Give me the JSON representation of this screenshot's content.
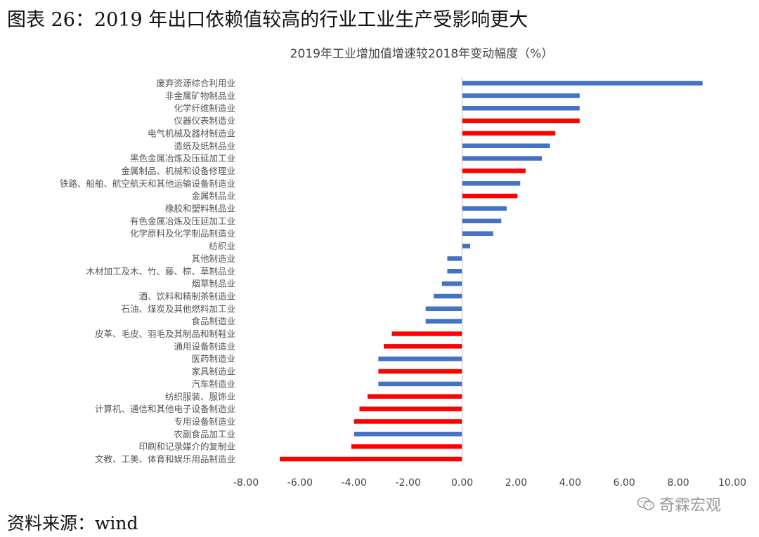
{
  "figure_title": "图表 26：2019 年出口依赖值较高的行业工业生产受影响更大",
  "source": "资料来源：wind",
  "watermark": {
    "text": "奇霖宏观",
    "icon": "wechat-icon"
  },
  "colors": {
    "highlight": "#ff0000",
    "default": "#4472c4"
  },
  "chart_data": {
    "type": "bar",
    "orientation": "horizontal",
    "title": "2019年工业增加值增速较2018年变动幅度（%）",
    "xlabel": "",
    "ylabel": "",
    "xlim": [
      -8,
      10
    ],
    "xticks": [
      "-8.00",
      "-6.00",
      "-4.00",
      "-2.00",
      "0.00",
      "2.00",
      "4.00",
      "6.00",
      "8.00",
      "10.00"
    ],
    "grid": false,
    "legend": "none",
    "categories": [
      "废弃资源综合利用业",
      "非金属矿物制品业",
      "化学纤维制造业",
      "仪器仪表制造业",
      "电气机械及器材制造业",
      "造纸及纸制品业",
      "黑色金属冶炼及压延加工业",
      "金属制品、机械和设备修理业",
      "铁路、船舶、航空航天和其他运输设备制造业",
      "金属制品业",
      "橡胶和塑料制品业",
      "有色金属冶炼及压延加工业",
      "化学原料及化学制品制造业",
      "纺织业",
      "其他制造业",
      "木材加工及木、竹、藤、棕、草制品业",
      "烟草制品业",
      "酒、饮料和精制茶制造业",
      "石油、煤炭及其他燃料加工业",
      "食品制造业",
      "皮革、毛皮、羽毛及其制品和制鞋业",
      "通用设备制造业",
      "医药制造业",
      "家具制造业",
      "汽车制造业",
      "纺织服装、服饰业",
      "计算机、通信和其他电子设备制造业",
      "专用设备制造业",
      "农副食品加工业",
      "印刷和记录媒介的复制业",
      "文教、工美、体育和娱乐用品制造业"
    ],
    "values": [
      8.9,
      4.35,
      4.35,
      4.35,
      3.45,
      3.25,
      2.95,
      2.35,
      2.15,
      2.05,
      1.65,
      1.45,
      1.15,
      0.3,
      -0.55,
      -0.55,
      -0.75,
      -1.05,
      -1.35,
      -1.35,
      -2.6,
      -2.9,
      -3.1,
      -3.1,
      -3.1,
      -3.5,
      -3.8,
      -4.0,
      -4.0,
      -4.1,
      -6.75
    ],
    "highlight": [
      false,
      false,
      false,
      true,
      true,
      false,
      false,
      true,
      false,
      true,
      false,
      false,
      false,
      false,
      false,
      false,
      false,
      false,
      false,
      false,
      true,
      true,
      false,
      true,
      false,
      true,
      true,
      true,
      false,
      true,
      true
    ]
  }
}
